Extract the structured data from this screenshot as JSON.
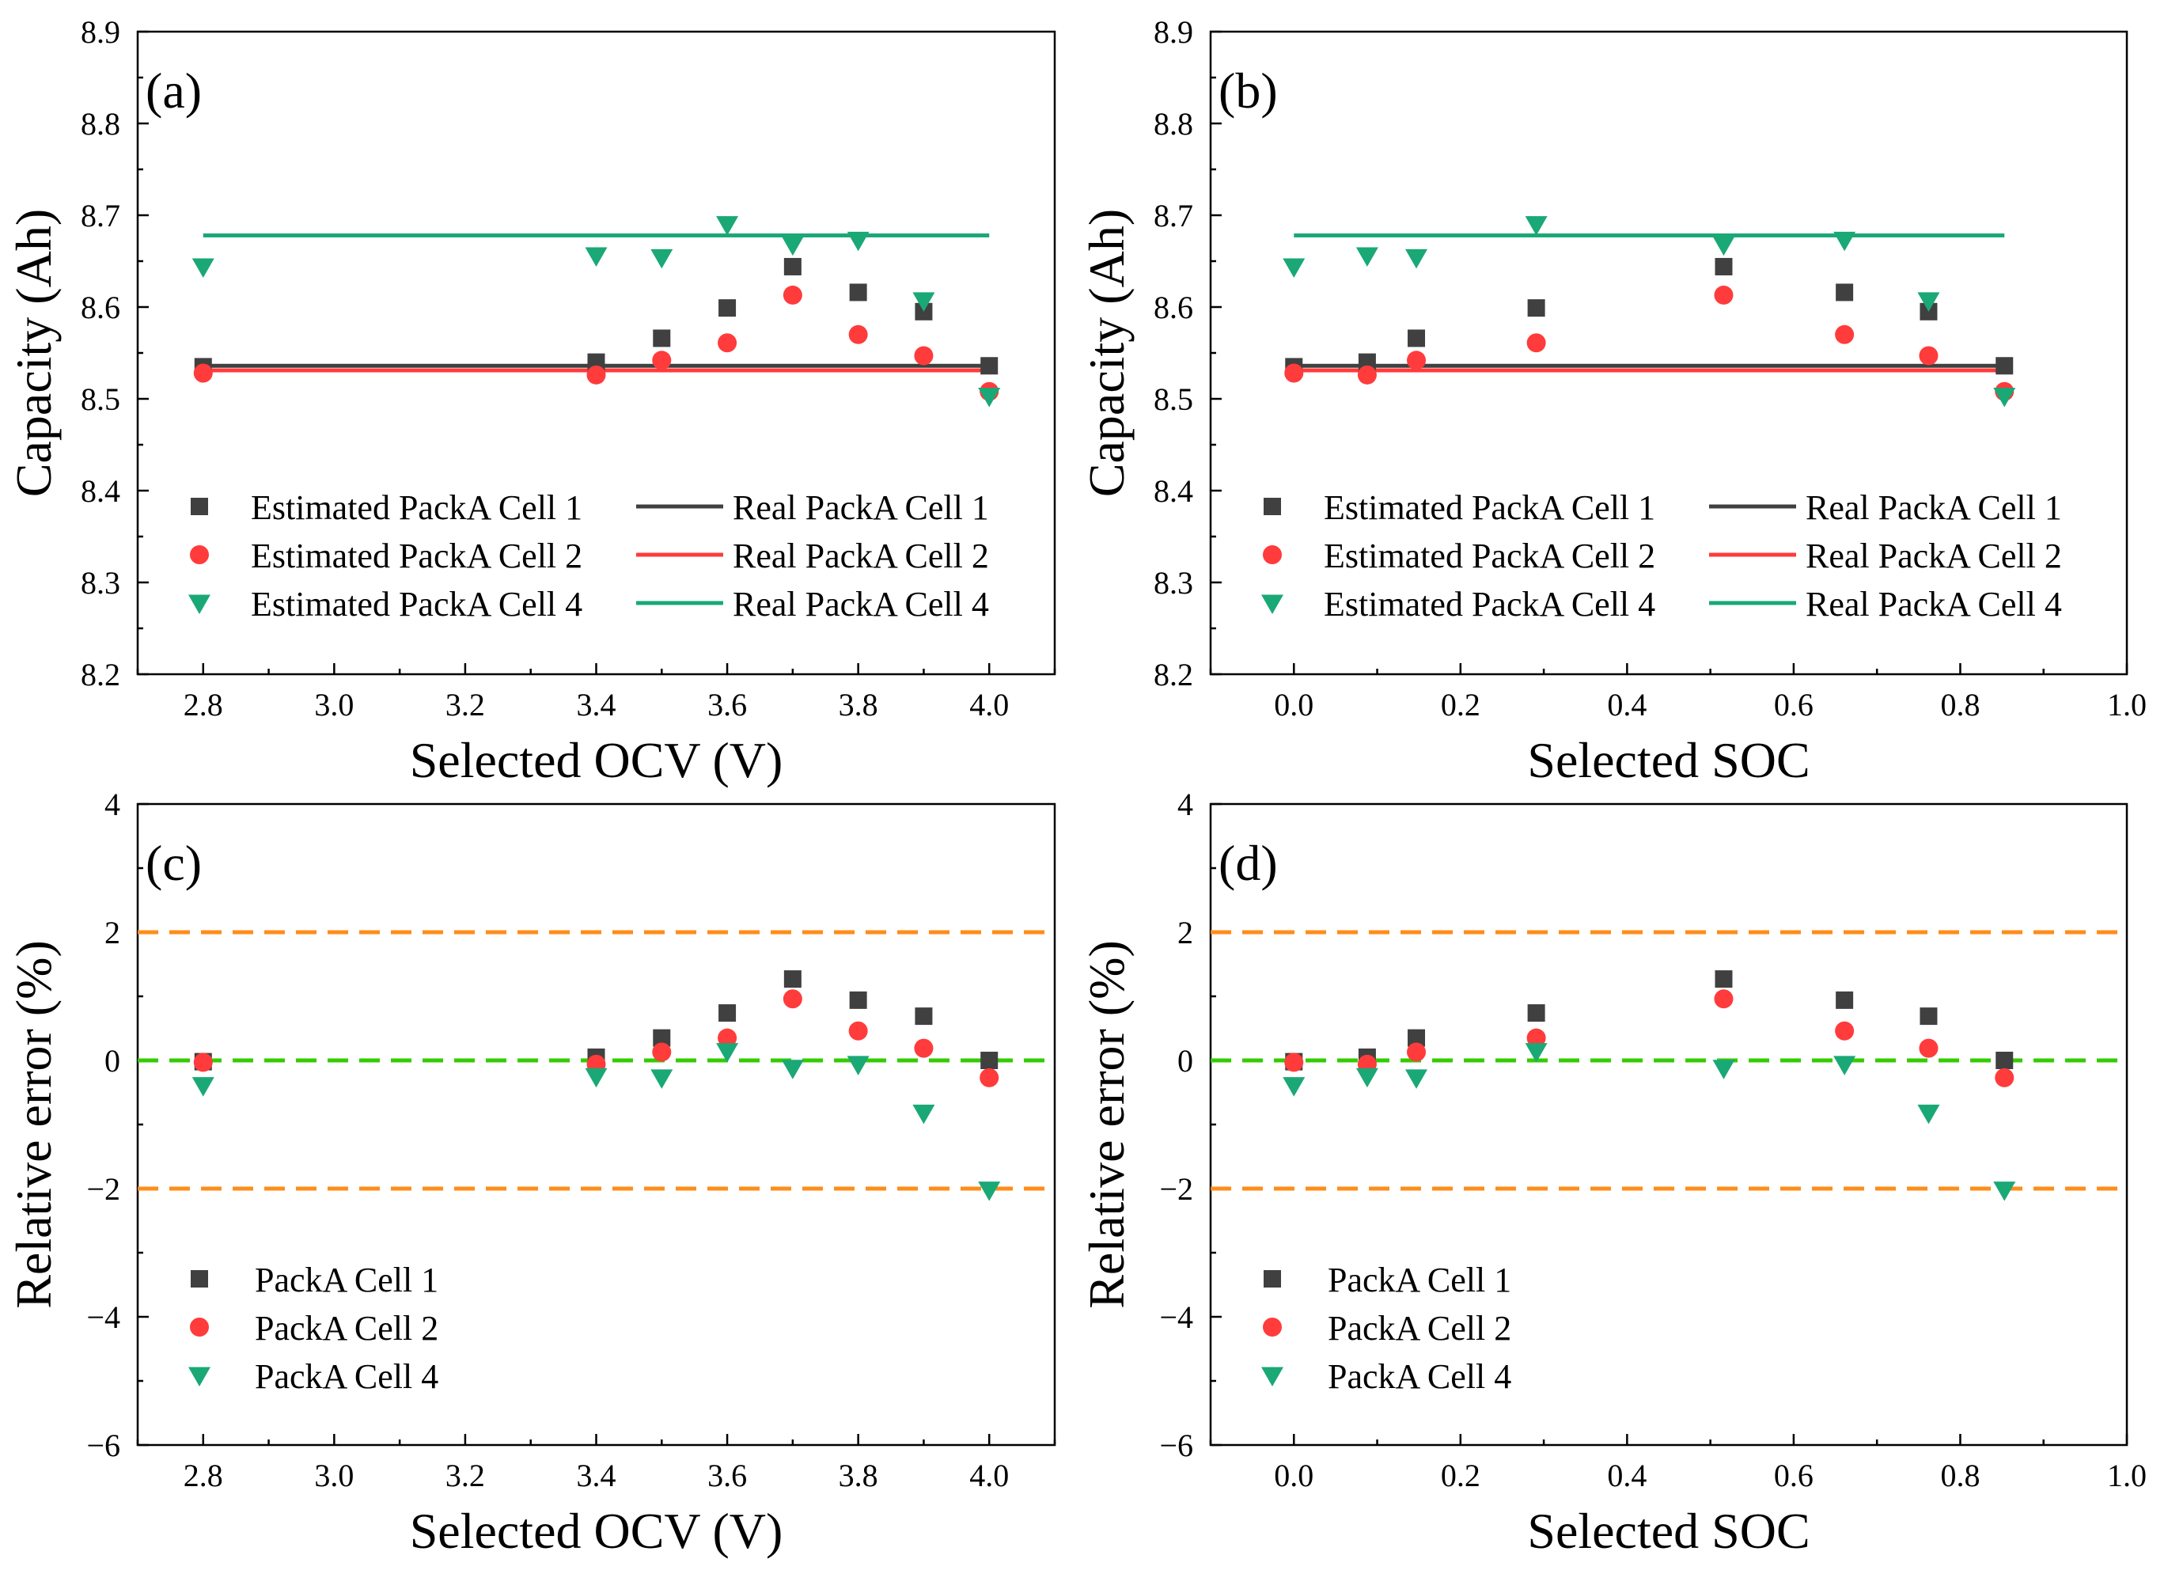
{
  "colors": {
    "cell1": "#404040",
    "cell2": "#ff3b3b",
    "cell4": "#1aa876",
    "err_limit": "#ff8c1a",
    "zero_line": "#33cc00"
  },
  "chart_data": [
    {
      "id": "a",
      "type": "scatter",
      "panel_label": "(a)",
      "xlabel": "Selected OCV (V)",
      "ylabel": "Capacity (Ah)",
      "xlim": [
        2.7,
        4.1
      ],
      "ylim": [
        8.2,
        8.9
      ],
      "x_ticks": [
        "2.8",
        "3.0",
        "3.2",
        "3.4",
        "3.6",
        "3.8",
        "4.0"
      ],
      "y_ticks": [
        "8.2",
        "8.3",
        "8.4",
        "8.5",
        "8.6",
        "8.7",
        "8.8",
        "8.9"
      ],
      "x": [
        2.8,
        3.4,
        3.5,
        3.6,
        3.7,
        3.8,
        3.9,
        4.0
      ],
      "series": [
        {
          "name": "Estimated PackA Cell 1",
          "marker": "square",
          "color_key": "cell1",
          "values": [
            8.535,
            8.54,
            8.566,
            8.599,
            8.644,
            8.616,
            8.595,
            8.536
          ]
        },
        {
          "name": "Estimated PackA Cell 2",
          "marker": "circle",
          "color_key": "cell2",
          "values": [
            8.528,
            8.526,
            8.542,
            8.561,
            8.613,
            8.57,
            8.547,
            8.508
          ]
        },
        {
          "name": "Estimated PackA Cell 4",
          "marker": "triangle-down",
          "color_key": "cell4",
          "values": [
            8.644,
            8.656,
            8.654,
            8.69,
            8.668,
            8.673,
            8.607,
            8.503
          ]
        }
      ],
      "reference_lines": [
        {
          "name": "Real PackA Cell 1",
          "color_key": "cell1",
          "y": 8.536,
          "x_range": [
            2.8,
            4.0
          ]
        },
        {
          "name": "Real PackA Cell 2",
          "color_key": "cell2",
          "y": 8.531,
          "x_range": [
            2.8,
            4.0
          ]
        },
        {
          "name": "Real PackA Cell 4",
          "color_key": "cell4",
          "y": 8.678,
          "x_range": [
            2.8,
            4.0
          ]
        }
      ],
      "legend": {
        "columns": 2
      }
    },
    {
      "id": "b",
      "type": "scatter",
      "panel_label": "(b)",
      "xlabel": "Selected SOC",
      "ylabel": "Capacity (Ah)",
      "xlim": [
        -0.1,
        1.0
      ],
      "ylim": [
        8.2,
        8.9
      ],
      "x_ticks": [
        "0.0",
        "0.2",
        "0.4",
        "0.6",
        "0.8",
        "1.0"
      ],
      "y_ticks": [
        "8.2",
        "8.3",
        "8.4",
        "8.5",
        "8.6",
        "8.7",
        "8.8",
        "8.9"
      ],
      "x": [
        0.0,
        0.088,
        0.147,
        0.291,
        0.516,
        0.661,
        0.762,
        0.853
      ],
      "series": [
        {
          "name": "Estimated PackA Cell 1",
          "marker": "square",
          "color_key": "cell1",
          "values": [
            8.535,
            8.54,
            8.566,
            8.599,
            8.644,
            8.616,
            8.595,
            8.536
          ]
        },
        {
          "name": "Estimated PackA Cell 2",
          "marker": "circle",
          "color_key": "cell2",
          "values": [
            8.528,
            8.526,
            8.542,
            8.561,
            8.613,
            8.57,
            8.547,
            8.508
          ]
        },
        {
          "name": "Estimated PackA Cell 4",
          "marker": "triangle-down",
          "color_key": "cell4",
          "values": [
            8.644,
            8.656,
            8.654,
            8.69,
            8.668,
            8.673,
            8.607,
            8.503
          ]
        }
      ],
      "reference_lines": [
        {
          "name": "Real PackA Cell 1",
          "color_key": "cell1",
          "y": 8.536,
          "x_range": [
            0.0,
            0.853
          ]
        },
        {
          "name": "Real PackA Cell 2",
          "color_key": "cell2",
          "y": 8.531,
          "x_range": [
            0.0,
            0.853
          ]
        },
        {
          "name": "Real PackA Cell 4",
          "color_key": "cell4",
          "y": 8.678,
          "x_range": [
            0.0,
            0.853
          ]
        }
      ],
      "legend": {
        "columns": 2
      }
    },
    {
      "id": "c",
      "type": "scatter",
      "panel_label": "(c)",
      "xlabel": "Selected OCV (V)",
      "ylabel": "Relative error (%)",
      "xlim": [
        2.7,
        4.1
      ],
      "ylim": [
        -6,
        4
      ],
      "x_ticks": [
        "2.8",
        "3.0",
        "3.2",
        "3.4",
        "3.6",
        "3.8",
        "4.0"
      ],
      "y_ticks": [
        "−6",
        "−4",
        "−2",
        "0",
        "2",
        "4"
      ],
      "x": [
        2.8,
        3.4,
        3.5,
        3.6,
        3.7,
        3.8,
        3.9,
        4.0
      ],
      "series": [
        {
          "name": "PackA Cell 1",
          "marker": "square",
          "color_key": "cell1",
          "values": [
            -0.02,
            0.05,
            0.35,
            0.74,
            1.27,
            0.94,
            0.69,
            0.0
          ]
        },
        {
          "name": "PackA Cell 2",
          "marker": "circle",
          "color_key": "cell2",
          "values": [
            -0.03,
            -0.06,
            0.13,
            0.35,
            0.96,
            0.46,
            0.19,
            -0.27
          ]
        },
        {
          "name": "PackA Cell 4",
          "marker": "triangle-down",
          "color_key": "cell4",
          "values": [
            -0.39,
            -0.25,
            -0.27,
            0.14,
            -0.12,
            -0.06,
            -0.82,
            -2.02
          ]
        }
      ],
      "reference_lines": [
        {
          "name": "",
          "color_key": "err_limit",
          "y": 2,
          "dashed": true
        },
        {
          "name": "",
          "color_key": "zero_line",
          "y": 0,
          "dashed": true
        },
        {
          "name": "",
          "color_key": "err_limit",
          "y": -2,
          "dashed": true
        }
      ],
      "legend": {
        "columns": 1
      }
    },
    {
      "id": "d",
      "type": "scatter",
      "panel_label": "(d)",
      "xlabel": "Selected SOC",
      "ylabel": "Relative error (%)",
      "xlim": [
        -0.1,
        1.0
      ],
      "ylim": [
        -6,
        4
      ],
      "x_ticks": [
        "0.0",
        "0.2",
        "0.4",
        "0.6",
        "0.8",
        "1.0"
      ],
      "y_ticks": [
        "−6",
        "−4",
        "−2",
        "0",
        "2",
        "4"
      ],
      "x": [
        0.0,
        0.088,
        0.147,
        0.291,
        0.516,
        0.661,
        0.762,
        0.853
      ],
      "series": [
        {
          "name": "PackA Cell 1",
          "marker": "square",
          "color_key": "cell1",
          "values": [
            -0.02,
            0.05,
            0.35,
            0.74,
            1.27,
            0.94,
            0.69,
            0.0
          ]
        },
        {
          "name": "PackA Cell 2",
          "marker": "circle",
          "color_key": "cell2",
          "values": [
            -0.03,
            -0.06,
            0.13,
            0.35,
            0.96,
            0.46,
            0.19,
            -0.27
          ]
        },
        {
          "name": "PackA Cell 4",
          "marker": "triangle-down",
          "color_key": "cell4",
          "values": [
            -0.39,
            -0.25,
            -0.27,
            0.14,
            -0.12,
            -0.06,
            -0.82,
            -2.02
          ]
        }
      ],
      "reference_lines": [
        {
          "name": "",
          "color_key": "err_limit",
          "y": 2,
          "dashed": true
        },
        {
          "name": "",
          "color_key": "zero_line",
          "y": 0,
          "dashed": true
        },
        {
          "name": "",
          "color_key": "err_limit",
          "y": -2,
          "dashed": true
        }
      ],
      "legend": {
        "columns": 1
      }
    }
  ]
}
